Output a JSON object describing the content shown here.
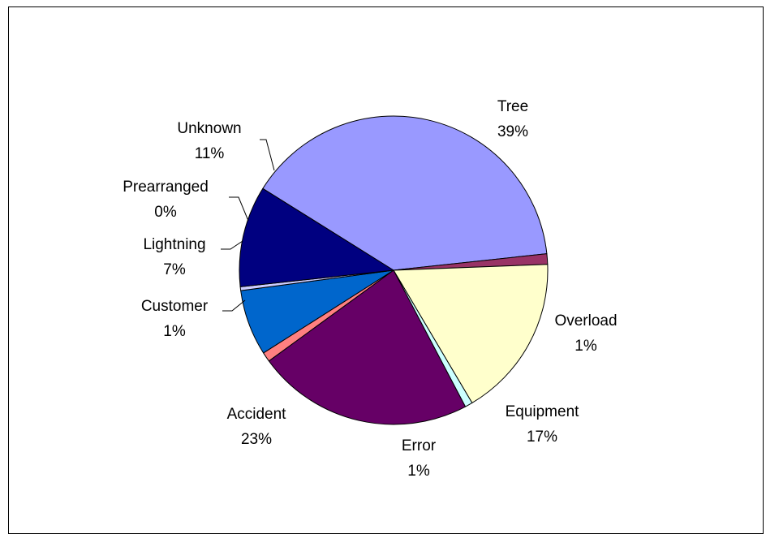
{
  "chart_data": {
    "type": "pie",
    "title": "",
    "slices": [
      {
        "label": "Tree",
        "value_label": "39%",
        "value": 39.4,
        "color": "#9999FF"
      },
      {
        "label": "Overload",
        "value_label": "1%",
        "value": 1.1,
        "color": "#993366"
      },
      {
        "label": "Equipment",
        "value_label": "17%",
        "value": 17.1,
        "color": "#FFFFCC"
      },
      {
        "label": "Error",
        "value_label": "1%",
        "value": 0.8,
        "color": "#CCFFFF"
      },
      {
        "label": "Accident",
        "value_label": "23%",
        "value": 22.7,
        "color": "#660066"
      },
      {
        "label": "Customer",
        "value_label": "1%",
        "value": 1.0,
        "color": "#FF8080"
      },
      {
        "label": "Lightning",
        "value_label": "7%",
        "value": 6.9,
        "color": "#0066CC"
      },
      {
        "label": "Prearranged",
        "value_label": "0%",
        "value": 0.4,
        "color": "#CCCCFF"
      },
      {
        "label": "Unknown",
        "value_label": "11%",
        "value": 10.6,
        "color": "#000080"
      }
    ],
    "legend": "none"
  }
}
